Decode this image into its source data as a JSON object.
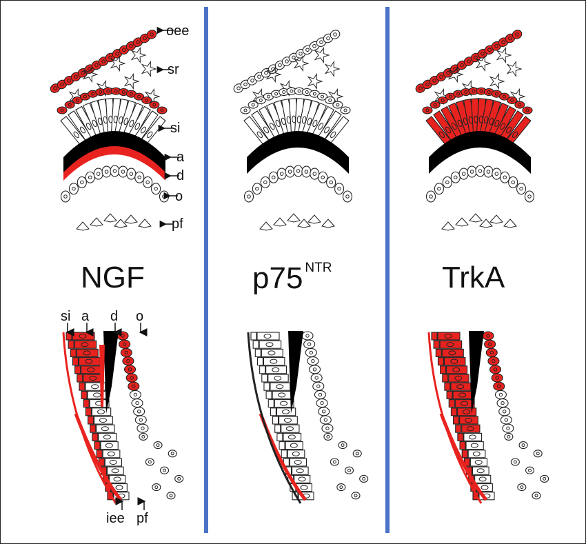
{
  "panels": [
    {
      "id": "ngf",
      "title": "NGF",
      "superscript": ""
    },
    {
      "id": "p75",
      "title": "p75",
      "superscript": "NTR"
    },
    {
      "id": "trka",
      "title": "TrkA",
      "superscript": ""
    }
  ],
  "top_labels": [
    "oee",
    "sr",
    "si",
    "a",
    "d",
    "o",
    "pf"
  ],
  "bottom_labels_top": [
    "si",
    "a",
    "d",
    "o"
  ],
  "bottom_labels_bottom": [
    "iee",
    "pf"
  ],
  "colors": {
    "stain": "#e8231f",
    "divider": "#4a73c7",
    "ink": "#111111",
    "dentin": "#000000"
  }
}
